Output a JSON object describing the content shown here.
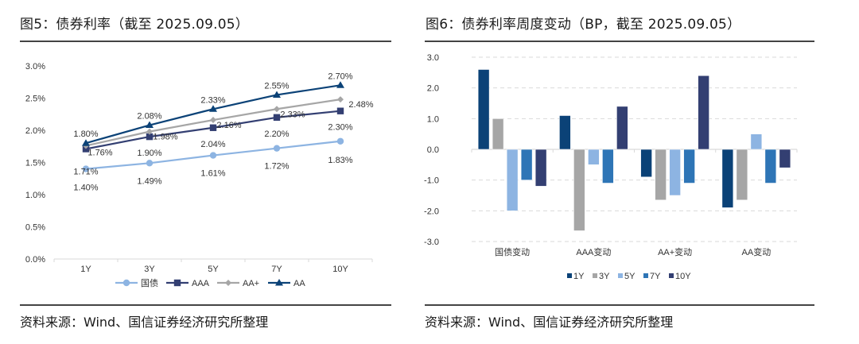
{
  "left_panel": {
    "title": "图5：债券利率（截至 2025.09.05）",
    "source": "资料来源：Wind、国信证券经济研究所整理"
  },
  "right_panel": {
    "title": "图6：债券利率周度变动（BP，截至 2025.09.05）",
    "source": "资料来源：Wind、国信证券经济研究所整理"
  },
  "chart_data": [
    {
      "type": "line",
      "title": "债券利率（截至 2025.09.05）",
      "xlabel": "",
      "ylabel": "",
      "categories": [
        "1Y",
        "3Y",
        "5Y",
        "7Y",
        "10Y"
      ],
      "ylim": [
        0,
        3.0
      ],
      "yticks": [
        0.0,
        0.5,
        1.0,
        1.5,
        2.0,
        2.5,
        3.0
      ],
      "ytick_labels": [
        "0.0%",
        "0.5%",
        "1.0%",
        "1.5%",
        "2.0%",
        "2.5%",
        "3.0%"
      ],
      "grid": false,
      "legend_position": "bottom",
      "series": [
        {
          "name": "国债",
          "values": [
            1.4,
            1.49,
            1.61,
            1.72,
            1.83
          ],
          "labels": [
            "1.40%",
            "1.49%",
            "1.61%",
            "1.72%",
            "1.83%"
          ],
          "color": "#8db4e2",
          "marker": "circle"
        },
        {
          "name": "AAA",
          "values": [
            1.71,
            1.9,
            2.04,
            2.2,
            2.3
          ],
          "labels": [
            "1.71%",
            "1.90%",
            "2.04%",
            "2.20%",
            "2.30%"
          ],
          "color": "#333f72",
          "marker": "square"
        },
        {
          "name": "AA+",
          "values": [
            1.76,
            1.98,
            2.16,
            2.33,
            2.48
          ],
          "labels": [
            "1.76%",
            "1.98%",
            "2.16%",
            "2.33%",
            "2.48%"
          ],
          "color": "#a6a6a6",
          "marker": "diamond"
        },
        {
          "name": "AA",
          "values": [
            1.8,
            2.08,
            2.33,
            2.55,
            2.7
          ],
          "labels": [
            "1.80%",
            "2.08%",
            "2.33%",
            "2.55%",
            "2.70%"
          ],
          "color": "#0b4277",
          "marker": "triangle"
        }
      ]
    },
    {
      "type": "bar",
      "title": "债券利率周度变动（BP，截至 2025.09.05）",
      "xlabel": "",
      "ylabel": "BP",
      "categories": [
        "国债变动",
        "AAA变动",
        "AA+变动",
        "AA变动"
      ],
      "ylim": [
        -3.0,
        3.0
      ],
      "yticks": [
        3.0,
        2.0,
        1.0,
        0.0,
        -1.0,
        -2.0,
        -3.0
      ],
      "ytick_labels": [
        "3.0",
        "2.0",
        "1.0",
        "0.0",
        "-1.0",
        "-2.0",
        "-3.0"
      ],
      "grid": true,
      "legend_position": "bottom",
      "series": [
        {
          "name": "1Y",
          "values": [
            2.6,
            1.1,
            -0.9,
            -1.9
          ],
          "color": "#0b4277"
        },
        {
          "name": "3Y",
          "values": [
            1.0,
            -2.65,
            -1.65,
            -1.65
          ],
          "color": "#a6a6a6"
        },
        {
          "name": "5Y",
          "values": [
            -2.0,
            -0.5,
            -1.5,
            0.5
          ],
          "color": "#8db4e2"
        },
        {
          "name": "7Y",
          "values": [
            -1.0,
            -1.1,
            -1.1,
            -1.1
          ],
          "color": "#2e75b6"
        },
        {
          "name": "10Y",
          "values": [
            -1.2,
            1.4,
            2.4,
            -0.6
          ],
          "color": "#333f72"
        }
      ]
    }
  ]
}
